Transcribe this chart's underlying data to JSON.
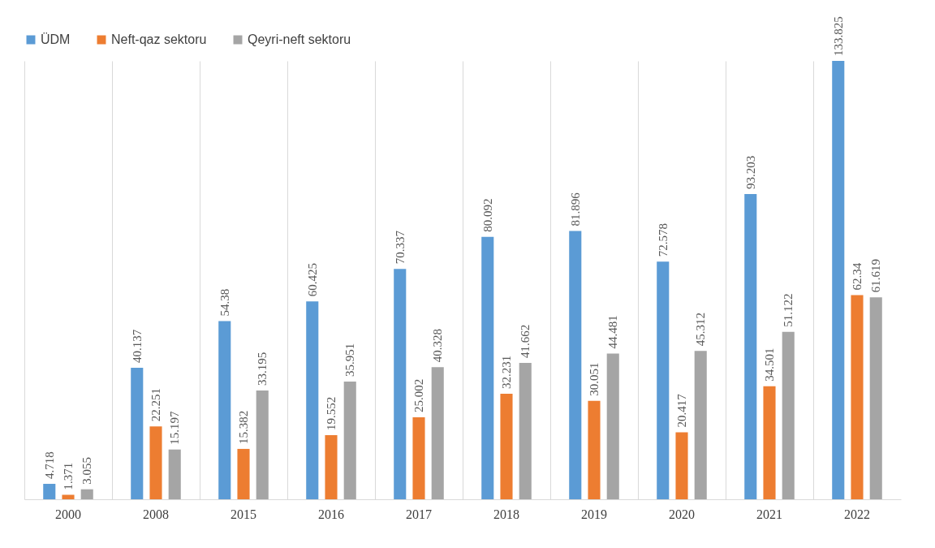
{
  "chart_data": {
    "type": "bar",
    "categories": [
      "2000",
      "2008",
      "2015",
      "2016",
      "2017",
      "2018",
      "2019",
      "2020",
      "2021",
      "2022"
    ],
    "series": [
      {
        "name": "ÜDM",
        "color": "#5b9bd5",
        "values": [
          4.718,
          40.137,
          54.38,
          60.425,
          70.337,
          80.092,
          81.896,
          72.578,
          93.203,
          133.825
        ]
      },
      {
        "name": "Neft-qaz sektoru",
        "color": "#ed7d31",
        "values": [
          1.371,
          22.251,
          15.382,
          19.552,
          25.002,
          32.231,
          30.051,
          20.417,
          34.501,
          62.34
        ]
      },
      {
        "name": "Qeyri-neft sektoru",
        "color": "#a5a5a5",
        "values": [
          3.055,
          15.197,
          33.195,
          35.951,
          40.328,
          41.662,
          44.481,
          45.312,
          51.122,
          61.619
        ]
      }
    ],
    "data_labels": true,
    "grid": "x",
    "legend": "top"
  }
}
